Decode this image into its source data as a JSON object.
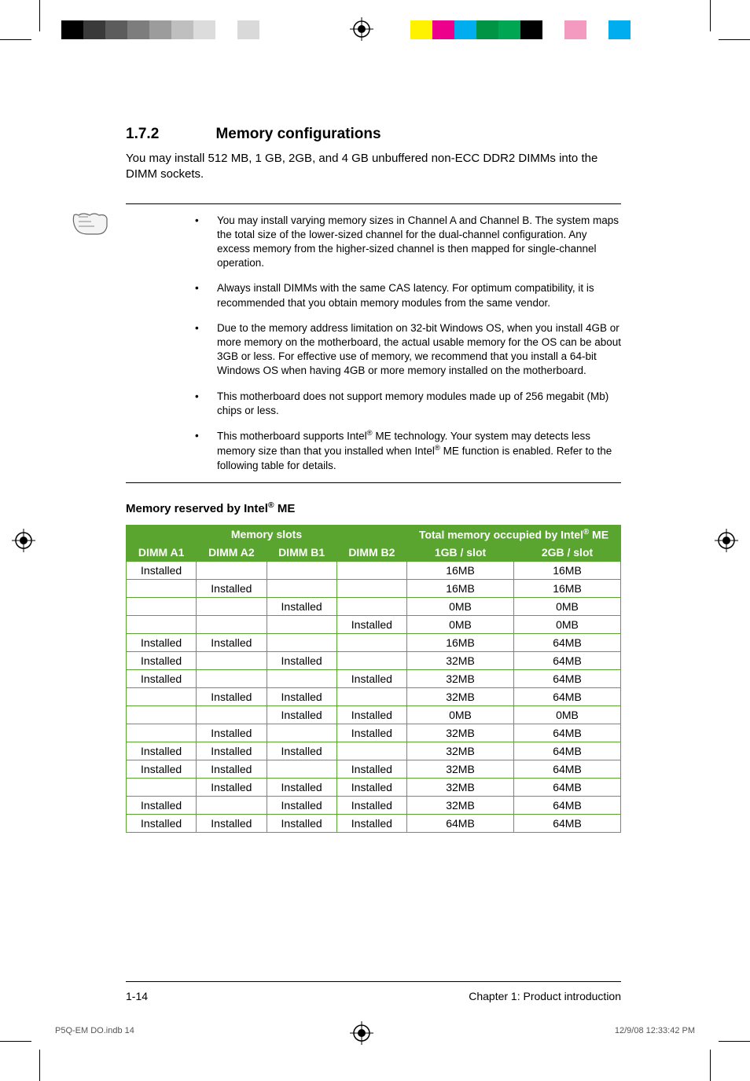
{
  "reg_colors_left": [
    "#000000",
    "#3a3a3a",
    "#5c5c5c",
    "#7d7d7d",
    "#9c9c9c",
    "#bfbfbf",
    "#dcdcdc",
    "#ffffff",
    "#d9d9d9",
    "#ffffff"
  ],
  "reg_colors_right": [
    "#fff200",
    "#ec008c",
    "#00aeef",
    "#009444",
    "#00a651",
    "#000000",
    "#ffffff",
    "#f49ac1",
    "#ffffff",
    "#00aeef"
  ],
  "section": {
    "number": "1.7.2",
    "title": "Memory configurations",
    "intro": "You may install 512 MB, 1 GB, 2GB, and 4 GB unbuffered non-ECC DDR2 DIMMs into the DIMM sockets."
  },
  "notes": [
    "You may install varying memory sizes in Channel A and Channel B. The system maps the total size of the lower-sized channel for the dual-channel configuration. Any excess memory from the higher-sized channel is then mapped for single-channel operation.",
    "Always install DIMMs with the same CAS latency. For optimum compatibility, it is recommended that you obtain memory modules from the same vendor.",
    "Due to the memory address limitation on 32-bit Windows OS, when you install 4GB or more memory on the motherboard, the actual usable memory for the OS can be about 3GB or less. For effective use of memory, we recommend that you install a 64-bit Windows OS when having 4GB or more memory installed on the motherboard.",
    "This motherboard does not support memory modules made up of 256 megabit (Mb) chips or less.",
    "This motherboard supports Intel® ME technology. Your system may detects less memory size than that you installed when Intel® ME function is enabled. Refer to the following table for details."
  ],
  "table": {
    "caption": "Memory reserved by Intel® ME",
    "header_group_left": "Memory slots",
    "header_group_right": "Total memory occupied by Intel® ME",
    "slot_headers": [
      "DIMM A1",
      "DIMM A2",
      "DIMM B1",
      "DIMM B2"
    ],
    "mem_headers": [
      "1GB / slot",
      "2GB / slot"
    ],
    "installed_label": "Installed",
    "rows": [
      {
        "slots": [
          1,
          0,
          0,
          0
        ],
        "m": [
          "16MB",
          "16MB"
        ]
      },
      {
        "slots": [
          0,
          1,
          0,
          0
        ],
        "m": [
          "16MB",
          "16MB"
        ]
      },
      {
        "slots": [
          0,
          0,
          1,
          0
        ],
        "m": [
          "0MB",
          "0MB"
        ]
      },
      {
        "slots": [
          0,
          0,
          0,
          1
        ],
        "m": [
          "0MB",
          "0MB"
        ]
      },
      {
        "slots": [
          1,
          1,
          0,
          0
        ],
        "m": [
          "16MB",
          "64MB"
        ]
      },
      {
        "slots": [
          1,
          0,
          1,
          0
        ],
        "m": [
          "32MB",
          "64MB"
        ]
      },
      {
        "slots": [
          1,
          0,
          0,
          1
        ],
        "m": [
          "32MB",
          "64MB"
        ]
      },
      {
        "slots": [
          0,
          1,
          1,
          0
        ],
        "m": [
          "32MB",
          "64MB"
        ]
      },
      {
        "slots": [
          0,
          0,
          1,
          1
        ],
        "m": [
          "0MB",
          "0MB"
        ]
      },
      {
        "slots": [
          0,
          1,
          0,
          1
        ],
        "m": [
          "32MB",
          "64MB"
        ]
      },
      {
        "slots": [
          1,
          1,
          1,
          0
        ],
        "m": [
          "32MB",
          "64MB"
        ]
      },
      {
        "slots": [
          1,
          1,
          0,
          1
        ],
        "m": [
          "32MB",
          "64MB"
        ]
      },
      {
        "slots": [
          0,
          1,
          1,
          1
        ],
        "m": [
          "32MB",
          "64MB"
        ]
      },
      {
        "slots": [
          1,
          0,
          1,
          1
        ],
        "m": [
          "32MB",
          "64MB"
        ]
      },
      {
        "slots": [
          1,
          1,
          1,
          1
        ],
        "m": [
          "64MB",
          "64MB"
        ]
      }
    ],
    "header_bg": "#5aa52f",
    "header_fg": "#ffffff",
    "border_color": "#5aa52f"
  },
  "footer": {
    "page": "1-14",
    "chapter": "Chapter 1: Product introduction"
  },
  "slug": {
    "file": "P5Q-EM DO.indb   14",
    "timestamp": "12/9/08   12:33:42 PM"
  }
}
